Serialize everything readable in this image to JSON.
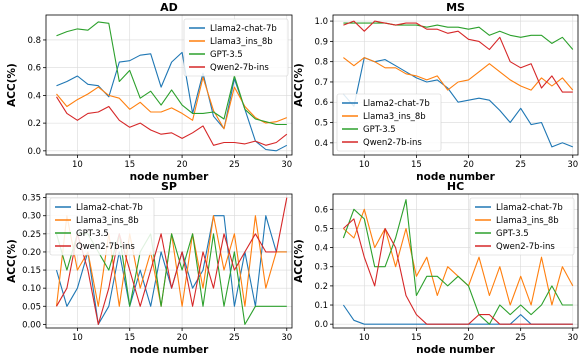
{
  "colors": {
    "Llama2-chat-7b": "#1f77b4",
    "Llama3_ins_8b": "#ff7f0e",
    "GPT-3.5": "#2ca02c",
    "Qwen2-7b-ins": "#d62728"
  },
  "chart_data": [
    {
      "type": "line",
      "title": "AD",
      "xlabel": "node number",
      "ylabel": "ACC(%)",
      "xlim": [
        7,
        30.5
      ],
      "ylim": [
        -0.03,
        0.98
      ],
      "xticks": [
        10,
        15,
        20,
        25,
        30
      ],
      "yticks": [
        0.0,
        0.2,
        0.4,
        0.6,
        0.8
      ],
      "ytick_labels": [
        "0.0",
        "0.2",
        "0.4",
        "0.6",
        "0.8"
      ],
      "grid": true,
      "legend_position": "top-right",
      "x": [
        8,
        9,
        10,
        11,
        12,
        13,
        14,
        15,
        16,
        17,
        18,
        19,
        20,
        21,
        22,
        23,
        24,
        25,
        26,
        27,
        28,
        29,
        30
      ],
      "series": [
        {
          "name": "Llama2-chat-7b",
          "values": [
            0.47,
            0.5,
            0.54,
            0.48,
            0.47,
            0.39,
            0.64,
            0.65,
            0.69,
            0.7,
            0.46,
            0.64,
            0.71,
            0.27,
            0.56,
            0.25,
            0.16,
            0.52,
            0.3,
            0.07,
            0.01,
            0.0,
            0.04
          ]
        },
        {
          "name": "Llama3_ins_8b",
          "values": [
            0.41,
            0.32,
            0.37,
            0.41,
            0.46,
            0.4,
            0.38,
            0.3,
            0.35,
            0.28,
            0.28,
            0.31,
            0.27,
            0.22,
            0.53,
            0.29,
            0.16,
            0.46,
            0.32,
            0.24,
            0.2,
            0.21,
            0.24
          ]
        },
        {
          "name": "GPT-3.5",
          "values": [
            0.83,
            0.86,
            0.88,
            0.87,
            0.93,
            0.92,
            0.5,
            0.58,
            0.38,
            0.43,
            0.33,
            0.44,
            0.33,
            0.27,
            0.27,
            0.28,
            0.23,
            0.54,
            0.3,
            0.23,
            0.21,
            0.19,
            0.19
          ]
        },
        {
          "name": "Qwen2-7b-ins",
          "values": [
            0.39,
            0.27,
            0.22,
            0.27,
            0.28,
            0.32,
            0.22,
            0.17,
            0.2,
            0.15,
            0.12,
            0.13,
            0.09,
            0.13,
            0.18,
            0.04,
            0.06,
            0.06,
            0.05,
            0.07,
            0.04,
            0.06,
            0.12
          ]
        }
      ]
    },
    {
      "type": "line",
      "title": "MS",
      "xlabel": "node number",
      "ylabel": "ACC(%)",
      "xlim": [
        7,
        30.5
      ],
      "ylim": [
        0.34,
        1.03
      ],
      "xticks": [
        10,
        15,
        20,
        25,
        30
      ],
      "yticks": [
        0.4,
        0.5,
        0.6,
        0.7,
        0.8,
        0.9,
        1.0
      ],
      "ytick_labels": [
        "0.4",
        "0.5",
        "0.6",
        "0.7",
        "0.8",
        "0.9",
        "1.0"
      ],
      "grid": true,
      "legend_position": "lower-left",
      "x": [
        8,
        9,
        10,
        11,
        12,
        13,
        14,
        15,
        16,
        17,
        18,
        19,
        20,
        21,
        22,
        23,
        24,
        25,
        26,
        27,
        28,
        29,
        30
      ],
      "series": [
        {
          "name": "Llama2-chat-7b",
          "values": [
            0.64,
            0.58,
            0.82,
            0.8,
            0.81,
            0.78,
            0.75,
            0.72,
            0.7,
            0.71,
            0.67,
            0.6,
            0.61,
            0.62,
            0.61,
            0.56,
            0.5,
            0.57,
            0.49,
            0.5,
            0.38,
            0.4,
            0.38
          ]
        },
        {
          "name": "Llama3_ins_8b",
          "values": [
            0.82,
            0.78,
            0.82,
            0.8,
            0.77,
            0.77,
            0.74,
            0.73,
            0.71,
            0.73,
            0.66,
            0.7,
            0.71,
            0.75,
            0.79,
            0.75,
            0.71,
            0.68,
            0.66,
            0.72,
            0.68,
            0.72,
            0.66
          ]
        },
        {
          "name": "GPT-3.5",
          "values": [
            0.99,
            0.99,
            0.99,
            0.99,
            0.99,
            0.98,
            0.98,
            0.98,
            0.97,
            0.98,
            0.97,
            0.97,
            0.96,
            0.97,
            0.93,
            0.95,
            0.93,
            0.92,
            0.93,
            0.93,
            0.89,
            0.92,
            0.86
          ]
        },
        {
          "name": "Qwen2-7b-ins",
          "values": [
            0.98,
            1.0,
            0.95,
            1.0,
            0.99,
            0.98,
            0.99,
            0.99,
            0.96,
            0.96,
            0.94,
            0.95,
            0.91,
            0.9,
            0.86,
            0.92,
            0.8,
            0.77,
            0.79,
            0.67,
            0.73,
            0.65,
            0.65
          ]
        }
      ]
    },
    {
      "type": "line",
      "title": "SP",
      "xlabel": "node number",
      "ylabel": "ACC(%)",
      "xlim": [
        7,
        30.5
      ],
      "ylim": [
        -0.01,
        0.36
      ],
      "xticks": [
        10,
        15,
        20,
        25,
        30
      ],
      "yticks": [
        0.0,
        0.05,
        0.1,
        0.15,
        0.2,
        0.25,
        0.3,
        0.35
      ],
      "ytick_labels": [
        "0.00",
        "0.05",
        "0.10",
        "0.15",
        "0.20",
        "0.25",
        "0.30",
        "0.35"
      ],
      "grid": true,
      "legend_position": "top-left",
      "x": [
        8,
        9,
        10,
        11,
        12,
        13,
        14,
        15,
        16,
        17,
        18,
        19,
        20,
        21,
        22,
        23,
        24,
        25,
        26,
        27,
        28,
        29,
        30
      ],
      "series": [
        {
          "name": "Llama2-chat-7b",
          "values": [
            0.15,
            0.05,
            0.1,
            0.2,
            0.0,
            0.05,
            0.2,
            0.05,
            0.15,
            0.05,
            0.2,
            0.1,
            0.2,
            0.1,
            0.15,
            0.3,
            0.3,
            0.05,
            0.2,
            0.05,
            0.3,
            0.2,
            0.2
          ]
        },
        {
          "name": "Llama3_ins_8b",
          "values": [
            0.05,
            0.3,
            0.15,
            0.2,
            0.05,
            0.25,
            0.05,
            0.25,
            0.1,
            0.2,
            0.05,
            0.25,
            0.05,
            0.25,
            0.1,
            0.3,
            0.15,
            0.25,
            0.05,
            0.3,
            0.1,
            0.2,
            0.2
          ]
        },
        {
          "name": "GPT-3.5",
          "values": [
            0.25,
            0.15,
            0.25,
            0.25,
            0.2,
            0.15,
            0.25,
            0.05,
            0.2,
            0.25,
            0.05,
            0.25,
            0.15,
            0.25,
            0.05,
            0.25,
            0.05,
            0.2,
            0.0,
            0.05,
            0.05,
            0.05,
            0.05
          ]
        },
        {
          "name": "Qwen2-7b-ins",
          "values": [
            0.05,
            0.1,
            0.25,
            0.15,
            0.0,
            0.1,
            0.25,
            0.15,
            0.05,
            0.15,
            0.25,
            0.1,
            0.2,
            0.05,
            0.2,
            0.1,
            0.25,
            0.15,
            0.2,
            0.25,
            0.2,
            0.2,
            0.35
          ]
        }
      ]
    },
    {
      "type": "line",
      "title": "HC",
      "xlabel": "node number",
      "ylabel": "ACC(%)",
      "xlim": [
        7,
        30.5
      ],
      "ylim": [
        -0.02,
        0.68
      ],
      "xticks": [
        10,
        15,
        20,
        25,
        30
      ],
      "yticks": [
        0.0,
        0.1,
        0.2,
        0.3,
        0.4,
        0.5,
        0.6
      ],
      "ytick_labels": [
        "0.0",
        "0.1",
        "0.2",
        "0.3",
        "0.4",
        "0.5",
        "0.6"
      ],
      "grid": true,
      "legend_position": "top-right",
      "x": [
        8,
        9,
        10,
        11,
        12,
        13,
        14,
        15,
        16,
        17,
        18,
        19,
        20,
        21,
        22,
        23,
        24,
        25,
        26,
        27,
        28,
        29,
        30
      ],
      "series": [
        {
          "name": "Llama2-chat-7b",
          "values": [
            0.1,
            0.02,
            0.0,
            0.0,
            0.0,
            0.0,
            0.0,
            0.0,
            0.0,
            0.0,
            0.0,
            0.0,
            0.0,
            0.0,
            0.0,
            0.0,
            0.0,
            0.05,
            0.0,
            0.0,
            0.0,
            0.0,
            0.0
          ]
        },
        {
          "name": "Llama3_ins_8b",
          "values": [
            0.5,
            0.45,
            0.6,
            0.4,
            0.5,
            0.3,
            0.5,
            0.25,
            0.35,
            0.15,
            0.3,
            0.25,
            0.2,
            0.35,
            0.15,
            0.3,
            0.1,
            0.25,
            0.1,
            0.35,
            0.1,
            0.3,
            0.2
          ]
        },
        {
          "name": "GPT-3.5",
          "values": [
            0.45,
            0.6,
            0.55,
            0.3,
            0.3,
            0.45,
            0.65,
            0.15,
            0.25,
            0.25,
            0.2,
            0.25,
            0.2,
            0.05,
            0.0,
            0.1,
            0.05,
            0.1,
            0.05,
            0.1,
            0.2,
            0.1,
            0.1
          ]
        },
        {
          "name": "Qwen2-7b-ins",
          "values": [
            0.5,
            0.55,
            0.35,
            0.2,
            0.5,
            0.4,
            0.15,
            0.05,
            0.0,
            0.0,
            0.0,
            0.0,
            0.0,
            0.05,
            0.05,
            0.0,
            0.0,
            0.0,
            0.0,
            0.0,
            0.0,
            0.0,
            0.0
          ]
        }
      ]
    }
  ]
}
